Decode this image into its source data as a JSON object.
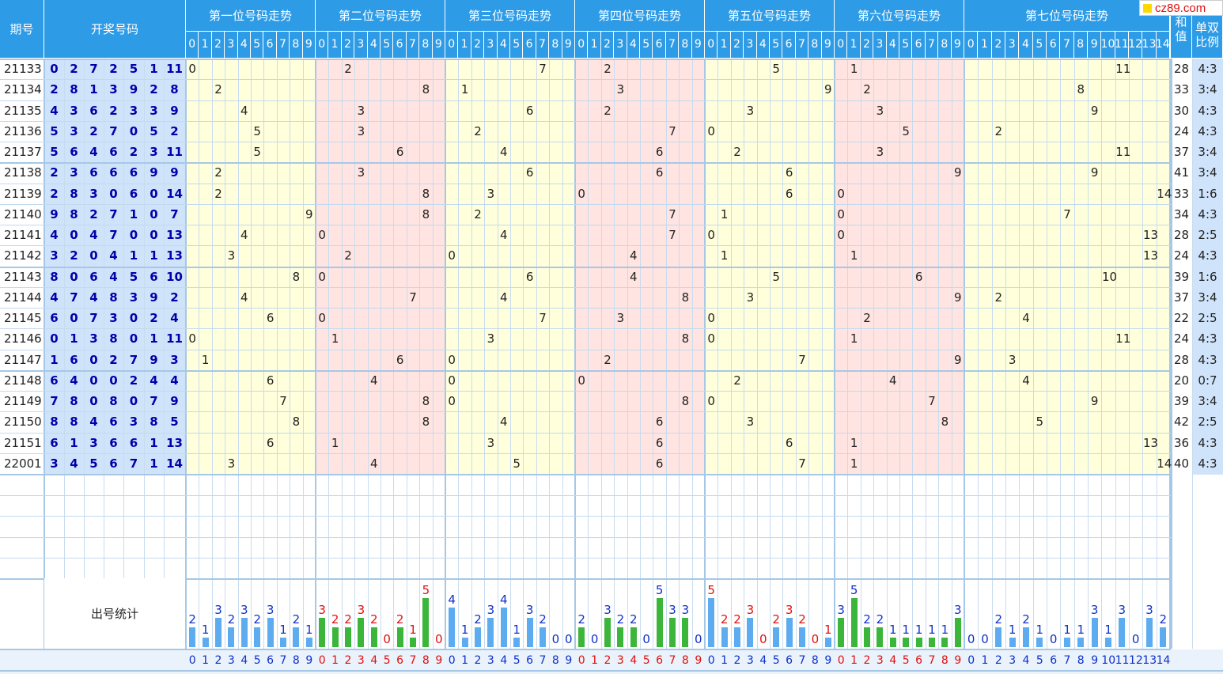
{
  "header": {
    "period_label": "期号",
    "numbers_label": "开奖号码",
    "pos_labels": [
      "第一位号码走势",
      "第二位号码走势",
      "第三位号码走势",
      "第四位号码走势",
      "第五位号码走势",
      "第六位号码走势",
      "第七位号码走势"
    ],
    "sum_label_1": "和",
    "sum_label_2": "值",
    "ratio_label_1": "单双",
    "ratio_label_2": "比例"
  },
  "logo": "cz89.com",
  "stat_label": "出号统计",
  "rows": [
    {
      "period": "21133",
      "nums": [
        0,
        2,
        7,
        2,
        5,
        1,
        11
      ],
      "sum": "28",
      "ratio": "4:3"
    },
    {
      "period": "21134",
      "nums": [
        2,
        8,
        1,
        3,
        9,
        2,
        8
      ],
      "sum": "33",
      "ratio": "3:4"
    },
    {
      "period": "21135",
      "nums": [
        4,
        3,
        6,
        2,
        3,
        3,
        9
      ],
      "sum": "30",
      "ratio": "4:3"
    },
    {
      "period": "21136",
      "nums": [
        5,
        3,
        2,
        7,
        0,
        5,
        2
      ],
      "sum": "24",
      "ratio": "4:3"
    },
    {
      "period": "21137",
      "nums": [
        5,
        6,
        4,
        6,
        2,
        3,
        11
      ],
      "sum": "37",
      "ratio": "3:4"
    },
    {
      "period": "21138",
      "nums": [
        2,
        3,
        6,
        6,
        6,
        9,
        9
      ],
      "sum": "41",
      "ratio": "3:4"
    },
    {
      "period": "21139",
      "nums": [
        2,
        8,
        3,
        0,
        6,
        0,
        14
      ],
      "sum": "33",
      "ratio": "1:6"
    },
    {
      "period": "21140",
      "nums": [
        9,
        8,
        2,
        7,
        1,
        0,
        7
      ],
      "sum": "34",
      "ratio": "4:3"
    },
    {
      "period": "21141",
      "nums": [
        4,
        0,
        4,
        7,
        0,
        0,
        13
      ],
      "sum": "28",
      "ratio": "2:5"
    },
    {
      "period": "21142",
      "nums": [
        3,
        2,
        0,
        4,
        1,
        1,
        13
      ],
      "sum": "24",
      "ratio": "4:3"
    },
    {
      "period": "21143",
      "nums": [
        8,
        0,
        6,
        4,
        5,
        6,
        10
      ],
      "sum": "39",
      "ratio": "1:6"
    },
    {
      "period": "21144",
      "nums": [
        4,
        7,
        4,
        8,
        3,
        9,
        2
      ],
      "sum": "37",
      "ratio": "3:4"
    },
    {
      "period": "21145",
      "nums": [
        6,
        0,
        7,
        3,
        0,
        2,
        4
      ],
      "sum": "22",
      "ratio": "2:5"
    },
    {
      "period": "21146",
      "nums": [
        0,
        1,
        3,
        8,
        0,
        1,
        11
      ],
      "sum": "24",
      "ratio": "4:3"
    },
    {
      "period": "21147",
      "nums": [
        1,
        6,
        0,
        2,
        7,
        9,
        3
      ],
      "sum": "28",
      "ratio": "4:3"
    },
    {
      "period": "21148",
      "nums": [
        6,
        4,
        0,
        0,
        2,
        4,
        4
      ],
      "sum": "20",
      "ratio": "0:7"
    },
    {
      "period": "21149",
      "nums": [
        7,
        8,
        0,
        8,
        0,
        7,
        9
      ],
      "sum": "39",
      "ratio": "3:4"
    },
    {
      "period": "21150",
      "nums": [
        8,
        8,
        4,
        6,
        3,
        8,
        5
      ],
      "sum": "42",
      "ratio": "2:5"
    },
    {
      "period": "21151",
      "nums": [
        6,
        1,
        3,
        6,
        6,
        1,
        13
      ],
      "sum": "36",
      "ratio": "4:3"
    },
    {
      "period": "22001",
      "nums": [
        3,
        4,
        5,
        6,
        7,
        1,
        14
      ],
      "sum": "40",
      "ratio": "4:3"
    }
  ],
  "counts": [
    [
      2,
      1,
      3,
      2,
      3,
      2,
      3,
      1,
      2,
      1
    ],
    [
      3,
      2,
      2,
      3,
      2,
      0,
      2,
      1,
      5,
      0
    ],
    [
      4,
      1,
      2,
      3,
      4,
      1,
      3,
      2,
      0,
      0
    ],
    [
      2,
      0,
      3,
      2,
      2,
      0,
      5,
      3,
      3,
      0
    ],
    [
      5,
      2,
      2,
      3,
      0,
      2,
      3,
      2,
      0,
      1
    ],
    [
      3,
      5,
      2,
      2,
      1,
      1,
      1,
      1,
      1,
      3
    ],
    [
      0,
      0,
      2,
      1,
      2,
      1,
      0,
      1,
      1,
      3,
      1,
      3,
      0,
      3,
      2
    ]
  ],
  "count_red_groups": [
    1,
    4
  ],
  "colors": {
    "header": "#2d9be6",
    "yellow": "#ffffdc",
    "pink": "#ffe4e1",
    "blue_bar": "#5eacf0",
    "green_bar": "#3bb63b",
    "digit": "#0000aa"
  }
}
